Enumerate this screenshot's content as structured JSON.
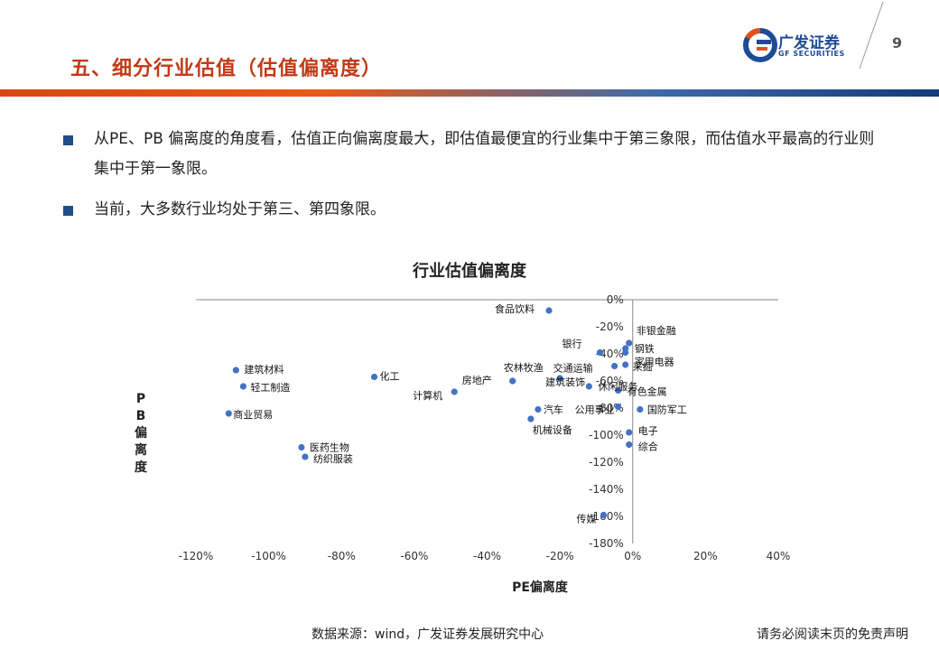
{
  "header": {
    "title": "五、细分行业估值（估值偏离度）",
    "logo_cn": "广发证券",
    "logo_en": "GF SECURITIES",
    "page_number": "9"
  },
  "bullets": [
    "从PE、PB 偏离度的角度看，估值正向偏离度最大，即估值最便宜的行业集中于第三象限，而估值水平最高的行业则集中于第一象限。",
    "当前，大多数行业均处于第三、第四象限。"
  ],
  "footer": {
    "source": "数据来源：wind，广发证券发展研究中心",
    "disclaimer": "请务必阅读末页的免责声明"
  },
  "colors": {
    "accent": "#c23a17",
    "point": "#4472c4",
    "brand_blue": "#1e4b95"
  },
  "chart_data": {
    "type": "scatter",
    "title": "行业估值偏离度",
    "xlabel": "PE偏离度",
    "ylabel": "PB偏离度",
    "xlim": [
      -1.2,
      0.4
    ],
    "ylim": [
      -1.8,
      0.0
    ],
    "x_ticks": [
      -1.2,
      -1.0,
      -0.8,
      -0.6,
      -0.4,
      -0.2,
      0.0,
      0.2,
      0.4
    ],
    "x_tick_labels": [
      "-120%",
      "-100%",
      "-80%",
      "-60%",
      "-40%",
      "-20%",
      "0%",
      "20%",
      "40%"
    ],
    "y_ticks": [
      0.0,
      -0.2,
      -0.4,
      -0.6,
      -0.8,
      -1.0,
      -1.2,
      -1.4,
      -1.6,
      -1.8
    ],
    "y_tick_labels": [
      "0%",
      "-20%",
      "-40%",
      "-60%",
      "-80%",
      "-100%",
      "-120%",
      "-140%",
      "-160%",
      "-180%"
    ],
    "points": [
      {
        "label": "食品饮料",
        "x": -0.23,
        "y": -0.08
      },
      {
        "label": "非银金融",
        "x": -0.01,
        "y": -0.32
      },
      {
        "label": "银行",
        "x": -0.09,
        "y": -0.39
      },
      {
        "label": "钢铁",
        "x": -0.02,
        "y": -0.36
      },
      {
        "label": "家用电器",
        "x": -0.02,
        "y": -0.39
      },
      {
        "label": "采掘",
        "x": -0.02,
        "y": -0.48
      },
      {
        "label": "交通运输",
        "x": -0.05,
        "y": -0.49
      },
      {
        "label": "建筑材料",
        "x": -1.09,
        "y": -0.52
      },
      {
        "label": "化工",
        "x": -0.71,
        "y": -0.57
      },
      {
        "label": "农林牧渔",
        "x": -0.33,
        "y": -0.6
      },
      {
        "label": "房地产",
        "x": -0.33,
        "y": -0.6
      },
      {
        "label": "建筑装饰",
        "x": -0.2,
        "y": -0.58
      },
      {
        "label": "轻工制造",
        "x": -1.07,
        "y": -0.64
      },
      {
        "label": "休闲服务",
        "x": -0.12,
        "y": -0.64
      },
      {
        "label": "计算机",
        "x": -0.49,
        "y": -0.68
      },
      {
        "label": "有色金属",
        "x": -0.04,
        "y": -0.67
      },
      {
        "label": "公用事业",
        "x": -0.04,
        "y": -0.79
      },
      {
        "label": "国防军工",
        "x": 0.02,
        "y": -0.81
      },
      {
        "label": "汽车",
        "x": -0.26,
        "y": -0.81
      },
      {
        "label": "商业贸易",
        "x": -1.11,
        "y": -0.84
      },
      {
        "label": "机械设备",
        "x": -0.28,
        "y": -0.88
      },
      {
        "label": "电子",
        "x": -0.01,
        "y": -0.98
      },
      {
        "label": "医药生物",
        "x": -0.91,
        "y": -1.09
      },
      {
        "label": "综合",
        "x": -0.01,
        "y": -1.07
      },
      {
        "label": "纺织服装",
        "x": -0.9,
        "y": -1.16
      },
      {
        "label": "传媒",
        "x": -0.08,
        "y": -1.59
      }
    ]
  }
}
